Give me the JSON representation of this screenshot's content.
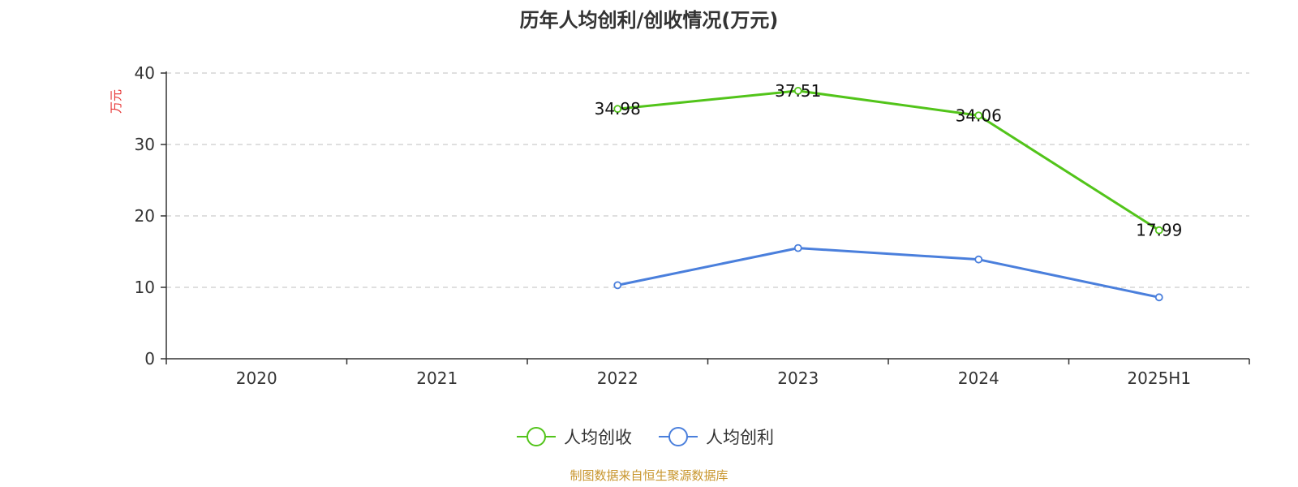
{
  "colors": {
    "revenue": "#52c41a",
    "profit": "#4a7fdc",
    "unit": "#e63232",
    "source": "#c8962e",
    "axis": "#333333",
    "grid": "#cccccc"
  },
  "chart_data": {
    "type": "line",
    "title": "历年人均创利/创收情况(万元)",
    "ylabel": "万元",
    "ylim": [
      0,
      40
    ],
    "yticks": [
      0,
      10,
      20,
      30,
      40
    ],
    "grid": "horizontal dashed",
    "legend_position": "bottom",
    "categories": [
      "2020",
      "2021",
      "2022",
      "2023",
      "2024",
      "2025H1"
    ],
    "series": [
      {
        "name": "人均创收",
        "color_key": "revenue",
        "values": [
          null,
          null,
          34.98,
          37.51,
          34.06,
          17.99
        ],
        "labels": [
          "",
          "",
          "34.98",
          "37.51",
          "34.06",
          "17.99"
        ]
      },
      {
        "name": "人均创利",
        "color_key": "profit",
        "values": [
          null,
          null,
          10.3,
          15.5,
          13.9,
          8.6
        ],
        "labels": []
      }
    ]
  },
  "source": "制图数据来自恒生聚源数据库"
}
